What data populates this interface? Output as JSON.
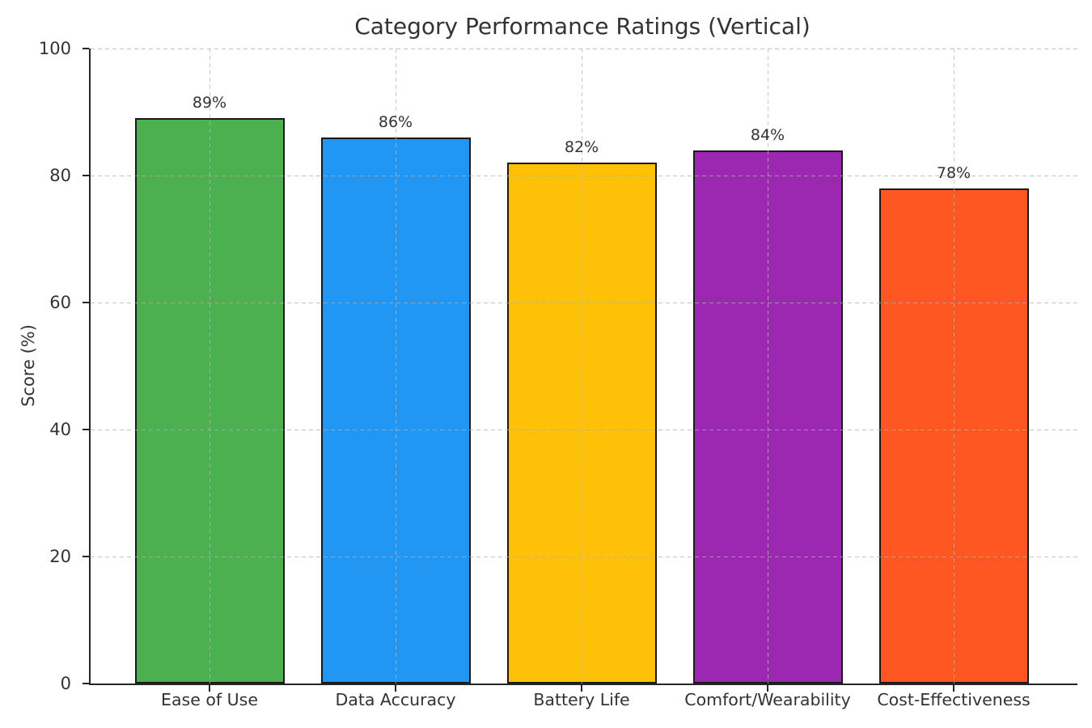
{
  "chart_data": {
    "type": "bar",
    "title": "Category Performance Ratings (Vertical)",
    "categories": [
      "Ease of Use",
      "Data Accuracy",
      "Battery Life",
      "Comfort/Wearability",
      "Cost-Effectiveness"
    ],
    "values": [
      89,
      86,
      82,
      84,
      78
    ],
    "value_labels": [
      "89%",
      "86%",
      "82%",
      "84%",
      "78%"
    ],
    "series_colors": [
      "#4caf50",
      "#2196f3",
      "#ffc107",
      "#9c27b0",
      "#ff5722"
    ],
    "bar_edge_color": "#1a1a1a",
    "xlabel": "",
    "ylabel": "Score (%)",
    "ylim": [
      0,
      100
    ],
    "yticks": [
      0,
      20,
      40,
      60,
      80,
      100
    ],
    "grid": "on",
    "grid_style": "dashed",
    "legend": "none",
    "text_color": "#333333"
  }
}
